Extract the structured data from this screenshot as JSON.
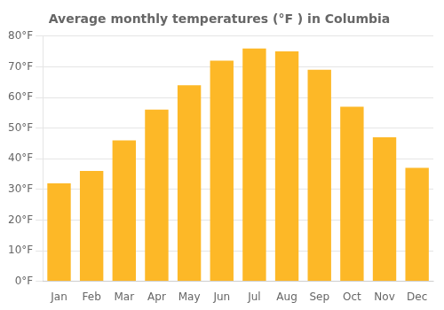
{
  "chart_data": {
    "type": "bar",
    "title": "Average monthly temperatures (°F ) in Columbia",
    "categories": [
      "Jan",
      "Feb",
      "Mar",
      "Apr",
      "May",
      "Jun",
      "Jul",
      "Aug",
      "Sep",
      "Oct",
      "Nov",
      "Dec"
    ],
    "values": [
      32,
      36,
      46,
      56,
      64,
      72,
      76,
      75,
      69,
      57,
      47,
      37
    ],
    "color": "#FDB827",
    "ylim": [
      0,
      80
    ],
    "yticks": [
      {
        "value": 0,
        "label": "0°F"
      },
      {
        "value": 10,
        "label": "10°F"
      },
      {
        "value": 20,
        "label": "20°F"
      },
      {
        "value": 30,
        "label": "30°F"
      },
      {
        "value": 40,
        "label": "40°F"
      },
      {
        "value": 50,
        "label": "50°F"
      },
      {
        "value": 60,
        "label": "60°F"
      },
      {
        "value": 70,
        "label": "70°F"
      },
      {
        "value": 80,
        "label": "80°F"
      }
    ],
    "grid": true
  }
}
